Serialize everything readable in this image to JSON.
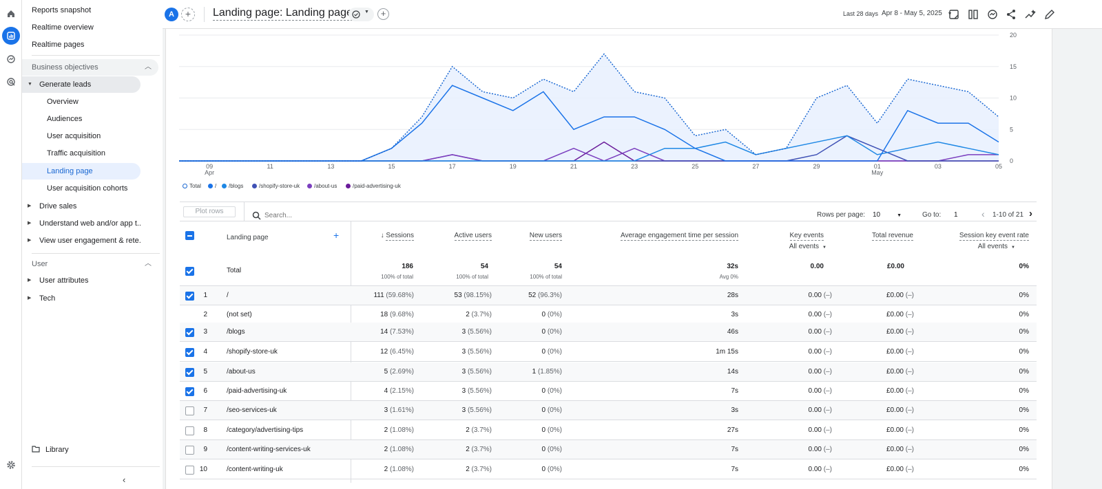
{
  "nav": {
    "items": [
      {
        "label": "Reports snapshot"
      },
      {
        "label": "Realtime overview"
      },
      {
        "label": "Realtime pages"
      },
      {
        "label": "Business objectives"
      },
      {
        "label": "Generate leads"
      },
      {
        "label": "Overview"
      },
      {
        "label": "Audiences"
      },
      {
        "label": "User acquisition"
      },
      {
        "label": "Traffic acquisition"
      },
      {
        "label": "Landing page"
      },
      {
        "label": "User acquisition cohorts"
      },
      {
        "label": "Drive sales"
      },
      {
        "label": "Understand web and/or app t..."
      },
      {
        "label": "View user engagement & rete..."
      },
      {
        "label": "User"
      },
      {
        "label": "User attributes"
      },
      {
        "label": "Tech"
      }
    ],
    "library_label": "Library"
  },
  "header": {
    "avatar_letter": "A",
    "title": "Landing page: Landing page",
    "date_prefix": "Last 28 days",
    "date_range": "Apr 8 - May 5, 2025"
  },
  "chart_data": {
    "type": "line",
    "x_labels": [
      "09",
      "11",
      "13",
      "15",
      "17",
      "19",
      "21",
      "23",
      "25",
      "27",
      "29",
      "01",
      "03",
      "05"
    ],
    "x_sublabels": {
      "09": "Apr",
      "01": "May"
    },
    "dates": [
      "Apr 8",
      "Apr 9",
      "Apr 10",
      "Apr 11",
      "Apr 12",
      "Apr 13",
      "Apr 14",
      "Apr 15",
      "Apr 16",
      "Apr 17",
      "Apr 18",
      "Apr 19",
      "Apr 20",
      "Apr 21",
      "Apr 22",
      "Apr 23",
      "Apr 24",
      "Apr 25",
      "Apr 26",
      "Apr 27",
      "Apr 28",
      "Apr 29",
      "Apr 30",
      "May 1",
      "May 2",
      "May 3",
      "May 4",
      "May 5"
    ],
    "y_ticks": [
      0,
      5,
      10,
      15,
      20
    ],
    "ylim": [
      0,
      20
    ],
    "legend": [
      "Total",
      "/",
      "/blogs",
      "/shopify-store-uk",
      "/about-us",
      "/paid-advertising-uk"
    ],
    "series": [
      {
        "name": "Total",
        "color": "#1967d2",
        "style": "dotted",
        "values": [
          0,
          0,
          0,
          0,
          0,
          0,
          0,
          2,
          7,
          15,
          11,
          10,
          13,
          11,
          17,
          11,
          10,
          4,
          5,
          1,
          2,
          10,
          12,
          6,
          13,
          12,
          11,
          7
        ]
      },
      {
        "name": "/",
        "color": "#1a73e8",
        "style": "solid",
        "values": [
          0,
          0,
          0,
          0,
          0,
          0,
          0,
          2,
          6,
          12,
          10,
          8,
          11,
          5,
          7,
          7,
          5,
          2,
          0,
          0,
          0,
          0,
          0,
          0,
          8,
          6,
          6,
          3
        ]
      },
      {
        "name": "/blogs",
        "color": "#1e88e5",
        "style": "solid",
        "values": [
          0,
          0,
          0,
          0,
          0,
          0,
          0,
          0,
          0,
          0,
          0,
          0,
          0,
          0,
          0,
          0,
          2,
          2,
          3,
          1,
          2,
          3,
          4,
          1,
          2,
          3,
          2,
          1
        ]
      },
      {
        "name": "/shopify-store-uk",
        "color": "#3f51b5",
        "style": "solid",
        "values": [
          0,
          0,
          0,
          0,
          0,
          0,
          0,
          0,
          0,
          0,
          0,
          0,
          0,
          0,
          0,
          0,
          0,
          0,
          0,
          0,
          0,
          1,
          4,
          2,
          0,
          0,
          0,
          0
        ]
      },
      {
        "name": "/about-us",
        "color": "#7b3fbf",
        "style": "solid",
        "values": [
          0,
          0,
          0,
          0,
          0,
          0,
          0,
          0,
          0,
          1,
          0,
          0,
          0,
          2,
          0,
          2,
          0,
          0,
          0,
          0,
          0,
          0,
          0,
          0,
          0,
          0,
          1,
          1
        ]
      },
      {
        "name": "/paid-advertising-uk",
        "color": "#6a1b9a",
        "style": "solid",
        "values": [
          0,
          0,
          0,
          0,
          0,
          0,
          0,
          0,
          0,
          1,
          0,
          0,
          0,
          0,
          3,
          0,
          0,
          0,
          0,
          0,
          0,
          0,
          0,
          0,
          0,
          0,
          0,
          0
        ]
      }
    ]
  },
  "table_controls": {
    "plot_rows_label": "Plot rows",
    "search_placeholder": "Search...",
    "rows_per_page_label": "Rows per page:",
    "rows_per_page_value": "10",
    "goto_label": "Go to:",
    "goto_value": "1",
    "pagination_text": "1-10 of 21"
  },
  "columns": {
    "dimension": "Landing page",
    "sessions": "Sessions",
    "active_users": "Active users",
    "new_users": "New users",
    "avg_engagement": "Average engagement time per session",
    "key_events": "Key events",
    "key_events_sub": "All events",
    "total_revenue": "Total revenue",
    "session_key_event_rate": "Session key event rate",
    "skr_sub": "All events"
  },
  "totals": {
    "label": "Total",
    "sessions": "186",
    "sessions_sub": "100% of total",
    "active_users": "54",
    "active_users_sub": "100% of total",
    "new_users": "54",
    "new_users_sub": "100% of total",
    "avg_engagement": "32s",
    "avg_engagement_sub": "Avg 0%",
    "key_events": "0.00",
    "total_revenue": "£0.00",
    "skr": "0%"
  },
  "rows": [
    {
      "idx": "1",
      "page": "/",
      "checked": true,
      "sessions": "111",
      "sessions_pct": "(59.68%)",
      "active": "53",
      "active_pct": "(98.15%)",
      "new": "52",
      "new_pct": "(96.3%)",
      "eng": "28s",
      "key": "0.00",
      "key_pct": "(–)",
      "rev": "£0.00",
      "rev_pct": "(–)",
      "skr": "0%"
    },
    {
      "idx": "2",
      "page": "(not set)",
      "checked": null,
      "sessions": "18",
      "sessions_pct": "(9.68%)",
      "active": "2",
      "active_pct": "(3.7%)",
      "new": "0",
      "new_pct": "(0%)",
      "eng": "3s",
      "key": "0.00",
      "key_pct": "(–)",
      "rev": "£0.00",
      "rev_pct": "(–)",
      "skr": "0%"
    },
    {
      "idx": "3",
      "page": "/blogs",
      "checked": true,
      "sessions": "14",
      "sessions_pct": "(7.53%)",
      "active": "3",
      "active_pct": "(5.56%)",
      "new": "0",
      "new_pct": "(0%)",
      "eng": "46s",
      "key": "0.00",
      "key_pct": "(–)",
      "rev": "£0.00",
      "rev_pct": "(–)",
      "skr": "0%"
    },
    {
      "idx": "4",
      "page": "/shopify-store-uk",
      "checked": true,
      "sessions": "12",
      "sessions_pct": "(6.45%)",
      "active": "3",
      "active_pct": "(5.56%)",
      "new": "0",
      "new_pct": "(0%)",
      "eng": "1m 15s",
      "key": "0.00",
      "key_pct": "(–)",
      "rev": "£0.00",
      "rev_pct": "(–)",
      "skr": "0%"
    },
    {
      "idx": "5",
      "page": "/about-us",
      "checked": true,
      "sessions": "5",
      "sessions_pct": "(2.69%)",
      "active": "3",
      "active_pct": "(5.56%)",
      "new": "1",
      "new_pct": "(1.85%)",
      "eng": "14s",
      "key": "0.00",
      "key_pct": "(–)",
      "rev": "£0.00",
      "rev_pct": "(–)",
      "skr": "0%"
    },
    {
      "idx": "6",
      "page": "/paid-advertising-uk",
      "checked": true,
      "sessions": "4",
      "sessions_pct": "(2.15%)",
      "active": "3",
      "active_pct": "(5.56%)",
      "new": "0",
      "new_pct": "(0%)",
      "eng": "7s",
      "key": "0.00",
      "key_pct": "(–)",
      "rev": "£0.00",
      "rev_pct": "(–)",
      "skr": "0%"
    },
    {
      "idx": "7",
      "page": "/seo-services-uk",
      "checked": false,
      "sessions": "3",
      "sessions_pct": "(1.61%)",
      "active": "3",
      "active_pct": "(5.56%)",
      "new": "0",
      "new_pct": "(0%)",
      "eng": "3s",
      "key": "0.00",
      "key_pct": "(–)",
      "rev": "£0.00",
      "rev_pct": "(–)",
      "skr": "0%"
    },
    {
      "idx": "8",
      "page": "/category/advertising-tips",
      "checked": false,
      "sessions": "2",
      "sessions_pct": "(1.08%)",
      "active": "2",
      "active_pct": "(3.7%)",
      "new": "0",
      "new_pct": "(0%)",
      "eng": "27s",
      "key": "0.00",
      "key_pct": "(–)",
      "rev": "£0.00",
      "rev_pct": "(–)",
      "skr": "0%"
    },
    {
      "idx": "9",
      "page": "/content-writing-services-uk",
      "checked": false,
      "sessions": "2",
      "sessions_pct": "(1.08%)",
      "active": "2",
      "active_pct": "(3.7%)",
      "new": "0",
      "new_pct": "(0%)",
      "eng": "7s",
      "key": "0.00",
      "key_pct": "(–)",
      "rev": "£0.00",
      "rev_pct": "(–)",
      "skr": "0%"
    },
    {
      "idx": "10",
      "page": "/content-writing-uk",
      "checked": false,
      "sessions": "2",
      "sessions_pct": "(1.08%)",
      "active": "2",
      "active_pct": "(3.7%)",
      "new": "0",
      "new_pct": "(0%)",
      "eng": "7s",
      "key": "0.00",
      "key_pct": "(–)",
      "rev": "£0.00",
      "rev_pct": "(–)",
      "skr": "0%"
    }
  ]
}
